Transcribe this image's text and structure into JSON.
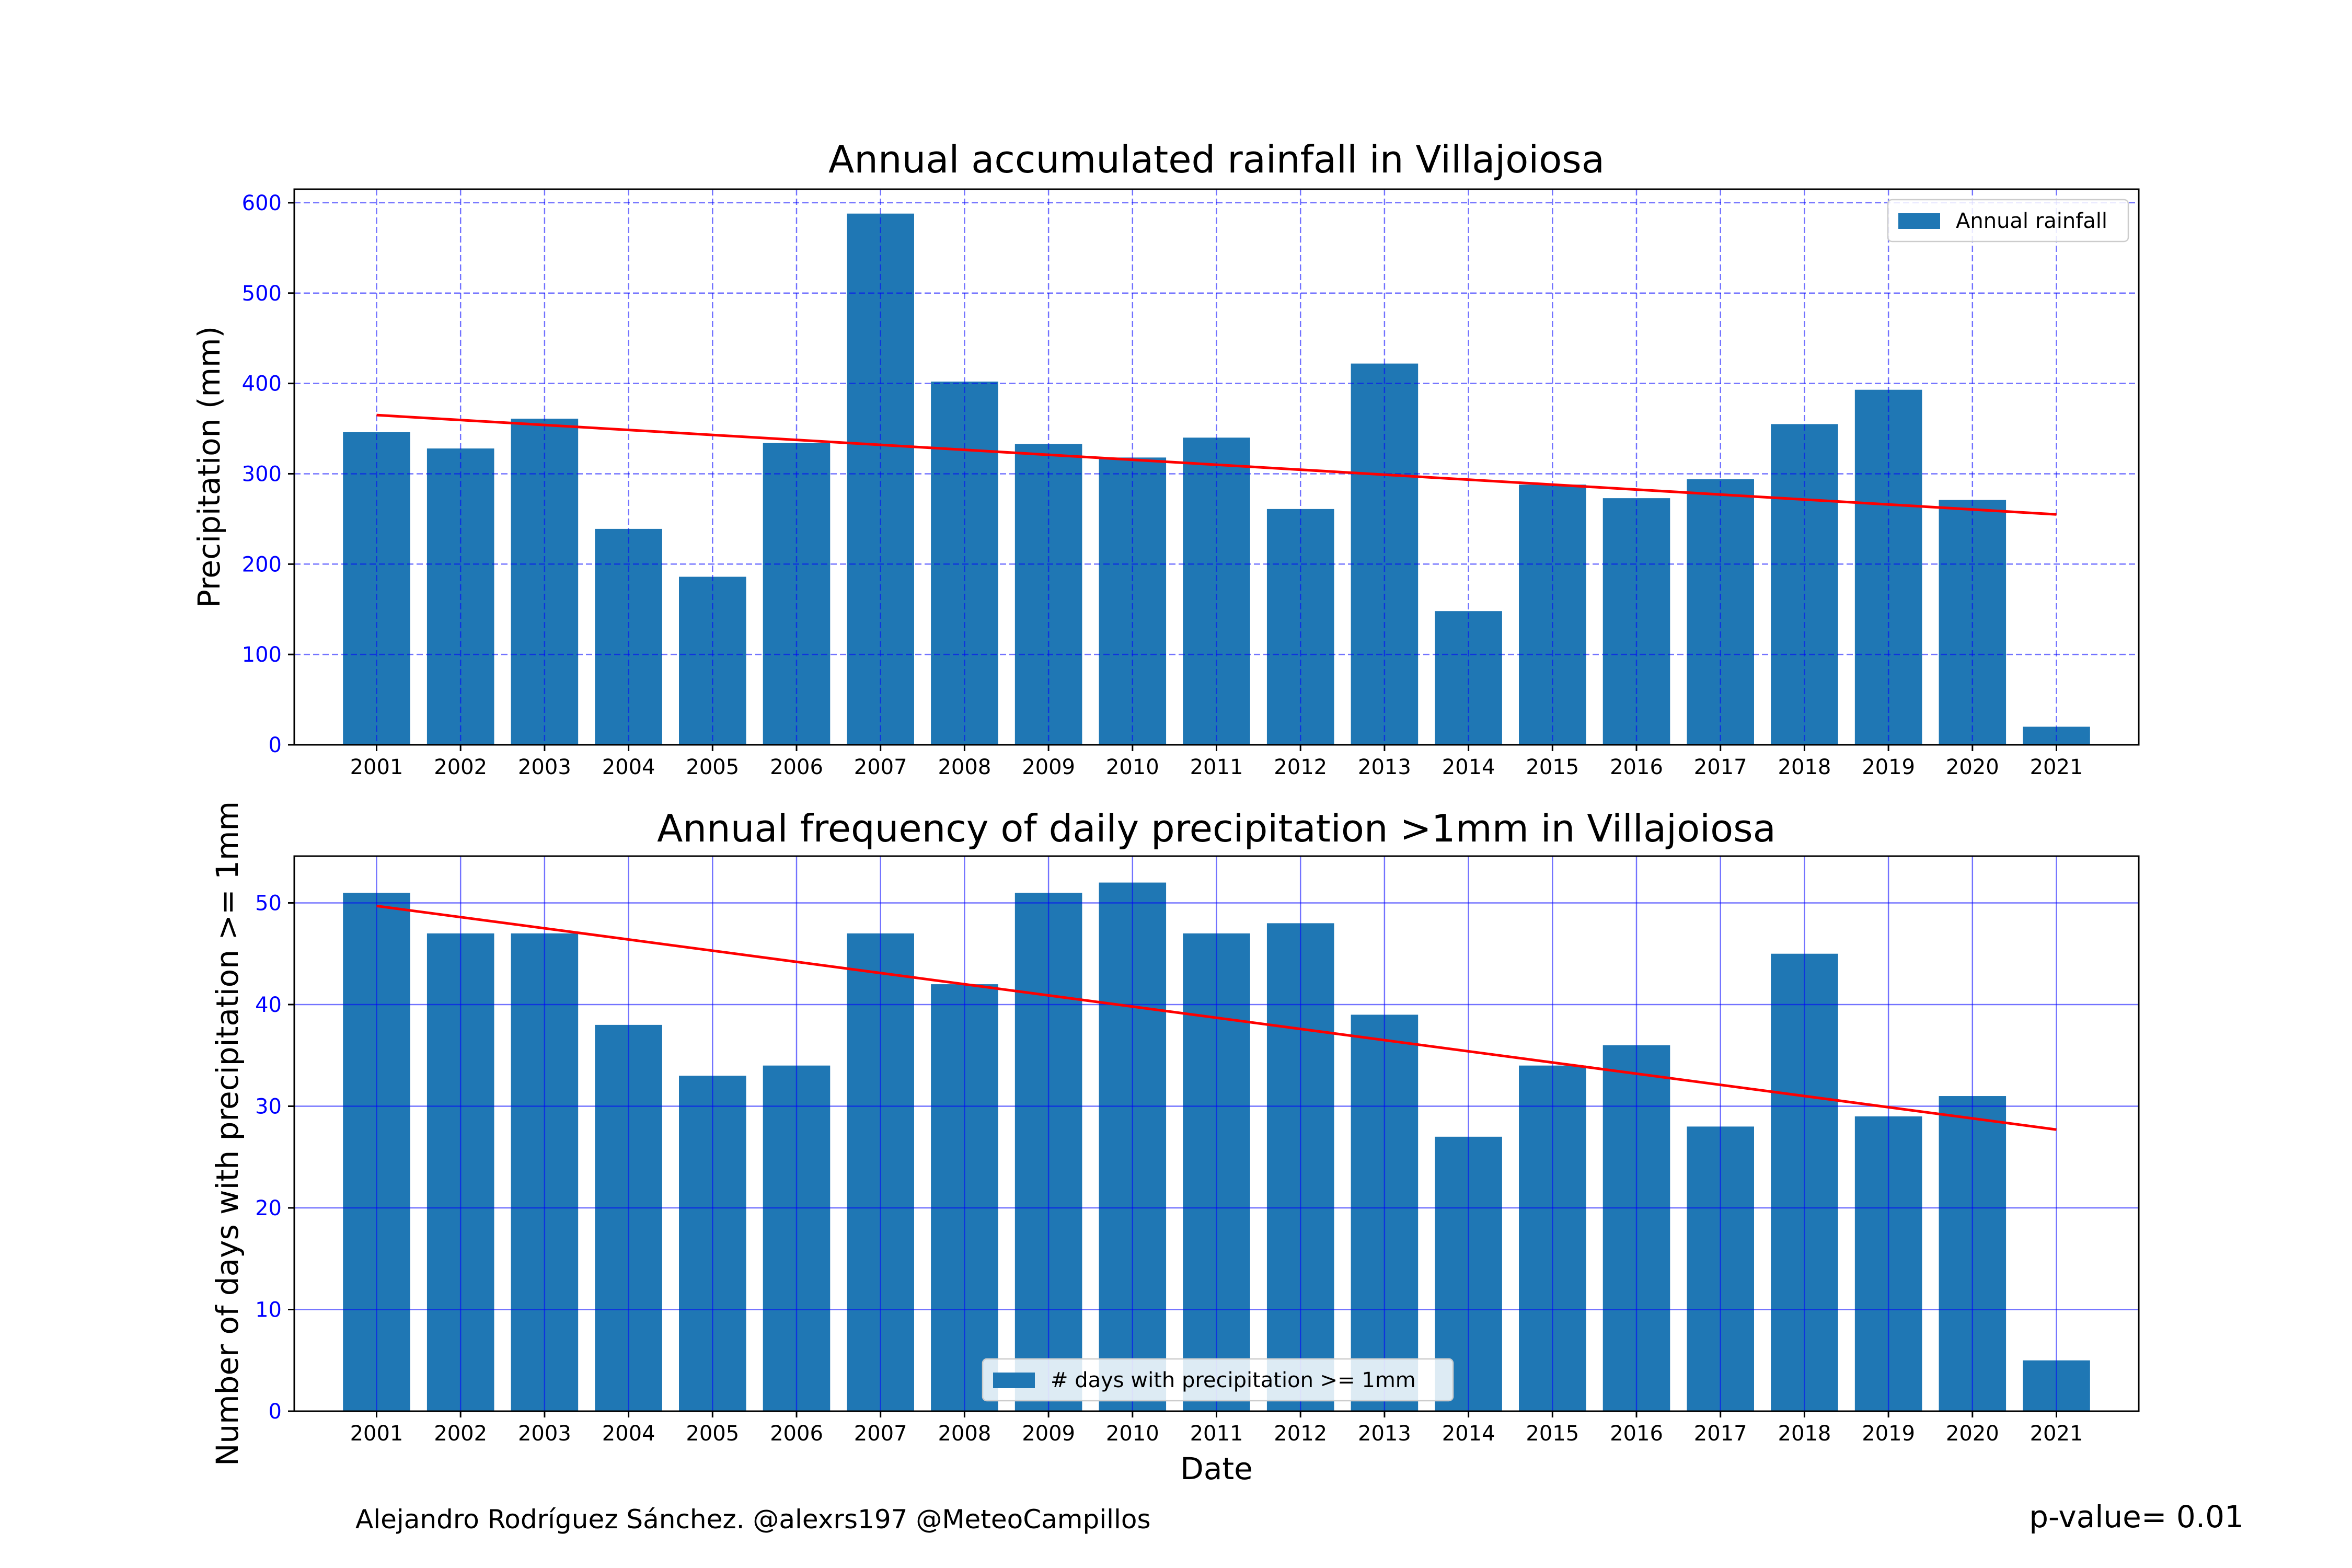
{
  "chart_data": [
    {
      "type": "bar",
      "title": "Annual accumulated rainfall in Villajoiosa",
      "xlabel": "",
      "ylabel": "Precipitation (mm)",
      "categories": [
        "2001",
        "2002",
        "2003",
        "2004",
        "2005",
        "2006",
        "2007",
        "2008",
        "2009",
        "2010",
        "2011",
        "2012",
        "2013",
        "2014",
        "2015",
        "2016",
        "2017",
        "2018",
        "2019",
        "2020",
        "2021"
      ],
      "series": [
        {
          "name": "Annual rainfall",
          "values": [
            346,
            328,
            361,
            239,
            186,
            334,
            588,
            402,
            333,
            318,
            340,
            261,
            422,
            148,
            288,
            273,
            294,
            355,
            393,
            271,
            20
          ],
          "color": "#1f77b4"
        }
      ],
      "trend": {
        "start": 365,
        "end": 255,
        "color": "#ff0000"
      },
      "ylim": [
        0,
        615
      ],
      "yticks": [
        0,
        100,
        200,
        300,
        400,
        500,
        600
      ],
      "grid": "dashed",
      "legend_position": "top-right"
    },
    {
      "type": "bar",
      "title": "Annual frequency of daily precipitation >1mm in Villajoiosa",
      "xlabel": "Date",
      "ylabel": "Number of days with precipitation >= 1mm",
      "categories": [
        "2001",
        "2002",
        "2003",
        "2004",
        "2005",
        "2006",
        "2007",
        "2008",
        "2009",
        "2010",
        "2011",
        "2012",
        "2013",
        "2014",
        "2015",
        "2016",
        "2017",
        "2018",
        "2019",
        "2020",
        "2021"
      ],
      "series": [
        {
          "name": "# days with precipitation >= 1mm",
          "values": [
            51,
            47,
            47,
            38,
            33,
            34,
            47,
            42,
            51,
            52,
            47,
            48,
            39,
            27,
            34,
            36,
            28,
            45,
            29,
            31,
            5
          ],
          "color": "#1f77b4"
        }
      ],
      "trend": {
        "start": 49.7,
        "end": 27.7,
        "color": "#ff0000"
      },
      "ylim": [
        0,
        54.6
      ],
      "yticks": [
        0,
        10,
        20,
        30,
        40,
        50
      ],
      "grid": "solid",
      "legend_position": "lower-center"
    }
  ],
  "footer": {
    "credit": "Alejandro Rodríguez Sánchez. @alexrs197 @MeteoCampillos",
    "pvalue": "p-value= 0.01"
  }
}
